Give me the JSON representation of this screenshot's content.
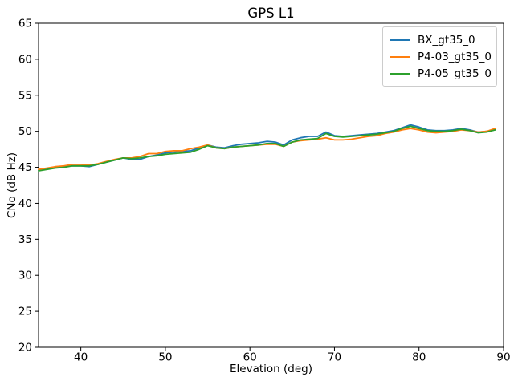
{
  "chart_data": {
    "type": "line",
    "title": "GPS L1",
    "xlabel": "Elevation (deg)",
    "ylabel": "CNo (dB Hz)",
    "xlim": [
      35,
      90
    ],
    "ylim": [
      20,
      65
    ],
    "xticks": [
      40,
      50,
      60,
      70,
      80,
      90
    ],
    "yticks": [
      20,
      25,
      30,
      35,
      40,
      45,
      50,
      55,
      60,
      65
    ],
    "grid": false,
    "legend_position": "upper right",
    "axis_color": "#000000",
    "x": [
      35,
      36,
      37,
      38,
      39,
      40,
      41,
      42,
      43,
      44,
      45,
      46,
      47,
      48,
      49,
      50,
      51,
      52,
      53,
      54,
      55,
      56,
      57,
      58,
      59,
      60,
      61,
      62,
      63,
      64,
      65,
      66,
      67,
      68,
      69,
      70,
      71,
      72,
      73,
      74,
      75,
      76,
      77,
      78,
      79,
      80,
      81,
      82,
      83,
      84,
      85,
      86,
      87,
      88,
      89
    ],
    "series": [
      {
        "name": "BX_gt35_0",
        "color": "#1f77b4",
        "values": [
          44.6,
          44.8,
          45.0,
          45.1,
          45.2,
          45.2,
          45.1,
          45.4,
          45.7,
          46.0,
          46.3,
          46.1,
          46.1,
          46.5,
          46.7,
          47.0,
          47.1,
          47.2,
          47.3,
          47.7,
          48.1,
          47.8,
          47.7,
          48.0,
          48.2,
          48.3,
          48.4,
          48.6,
          48.5,
          48.1,
          48.8,
          49.1,
          49.3,
          49.3,
          49.9,
          49.4,
          49.3,
          49.4,
          49.5,
          49.6,
          49.7,
          49.9,
          50.1,
          50.5,
          50.9,
          50.6,
          50.2,
          50.1,
          50.1,
          50.2,
          50.4,
          50.2,
          49.9,
          50.0,
          50.2
        ]
      },
      {
        "name": "P4-03_gt35_0",
        "color": "#ff7f0e",
        "values": [
          44.7,
          44.9,
          45.1,
          45.2,
          45.4,
          45.4,
          45.3,
          45.5,
          45.8,
          46.1,
          46.3,
          46.3,
          46.5,
          46.9,
          46.9,
          47.2,
          47.3,
          47.3,
          47.6,
          47.8,
          48.1,
          47.7,
          47.6,
          47.8,
          47.9,
          48.0,
          48.1,
          48.2,
          48.2,
          47.9,
          48.5,
          48.7,
          48.8,
          48.9,
          49.1,
          48.8,
          48.8,
          48.9,
          49.1,
          49.3,
          49.4,
          49.7,
          49.9,
          50.2,
          50.4,
          50.2,
          49.9,
          49.8,
          49.9,
          50.0,
          50.2,
          50.1,
          49.9,
          50.0,
          50.4
        ]
      },
      {
        "name": "P4-05_gt35_0",
        "color": "#2ca02c",
        "values": [
          44.5,
          44.7,
          44.9,
          45.0,
          45.2,
          45.2,
          45.2,
          45.4,
          45.7,
          46.0,
          46.3,
          46.2,
          46.3,
          46.5,
          46.6,
          46.8,
          46.9,
          47.0,
          47.1,
          47.5,
          48.0,
          47.7,
          47.6,
          47.8,
          47.9,
          48.0,
          48.1,
          48.3,
          48.3,
          47.9,
          48.5,
          48.8,
          48.9,
          49.0,
          49.7,
          49.3,
          49.2,
          49.3,
          49.4,
          49.5,
          49.6,
          49.8,
          50.0,
          50.4,
          50.7,
          50.4,
          50.1,
          50.0,
          50.0,
          50.1,
          50.3,
          50.1,
          49.8,
          49.9,
          50.2
        ]
      }
    ]
  }
}
